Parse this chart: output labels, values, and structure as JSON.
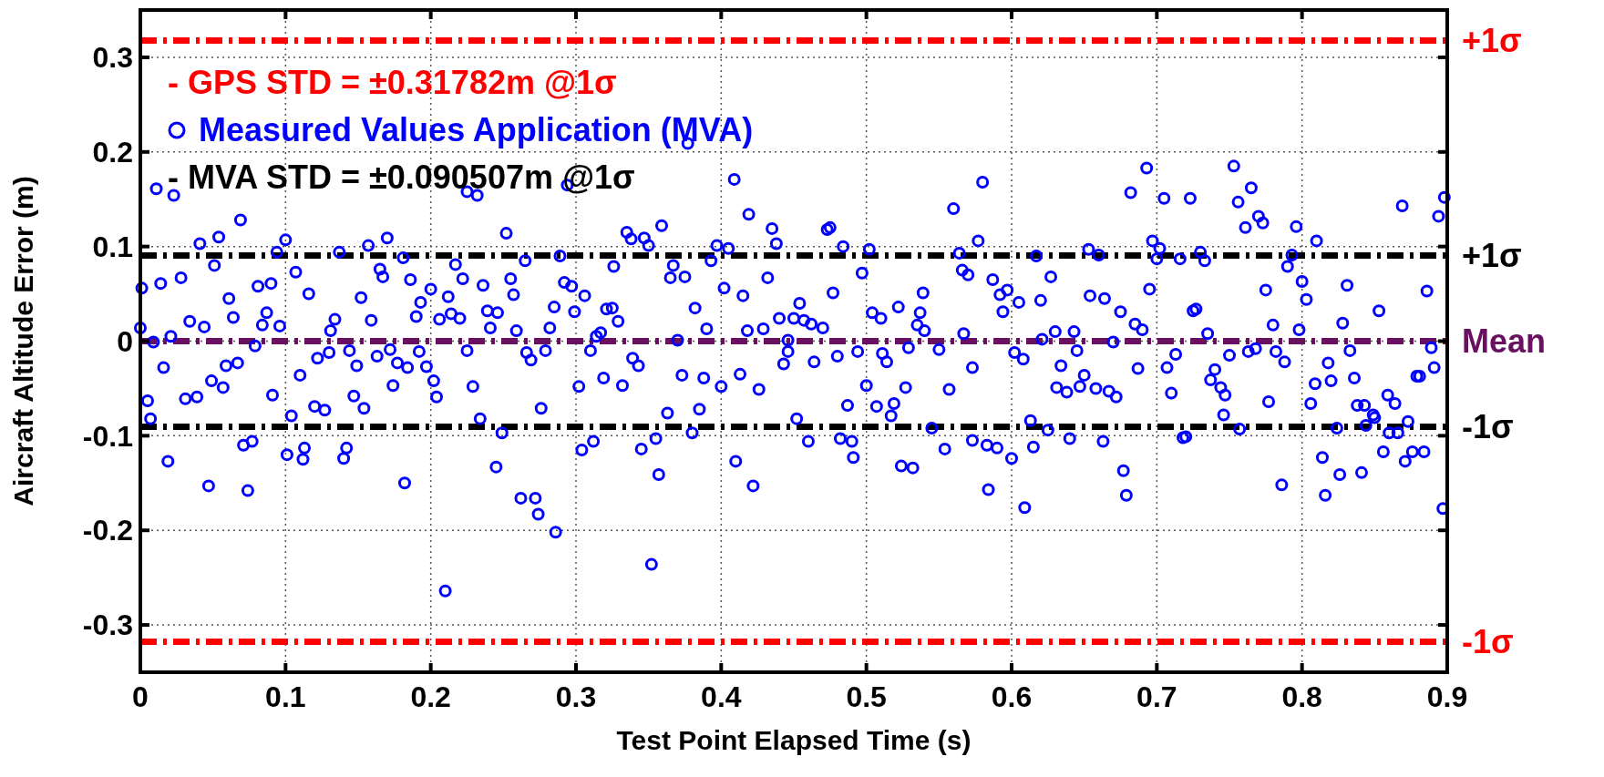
{
  "chart_data": {
    "type": "scatter",
    "xlabel": "Test Point Elapsed Time (s)",
    "ylabel": "Aircraft Altitude Error (m)",
    "xlim": [
      0,
      0.9
    ],
    "xticks": [
      0,
      0.1,
      0.2,
      0.3,
      0.4,
      0.5,
      0.6,
      0.7,
      0.8,
      0.9
    ],
    "ylim": [
      -0.35,
      0.35
    ],
    "yticks": [
      -0.3,
      -0.2,
      -0.1,
      0,
      0.1,
      0.2,
      0.3
    ],
    "grid": true,
    "legend": "top left",
    "marker": "circle",
    "annotations": [
      "- GPS STD = ±0.31782m @1σ",
      "- MVA STD = ±0.090507m @1σ"
    ],
    "ref_lines": [
      {
        "axis": "y",
        "value": 0.31782,
        "label": "+1σ",
        "color": "#ff0000",
        "line_style": "dashed"
      },
      {
        "axis": "y",
        "value": -0.31782,
        "label": "-1σ",
        "color": "#ff0000",
        "line_style": "dashed"
      },
      {
        "axis": "y",
        "value": 0.090507,
        "label": "+1σ",
        "color": "#000000",
        "line_style": "dashed"
      },
      {
        "axis": "y",
        "value": -0.090507,
        "label": "-1σ",
        "color": "#000000",
        "line_style": "dashed"
      },
      {
        "axis": "y",
        "value": 0,
        "label": "Mean",
        "color": "#6a1060",
        "line_style": "dashed"
      }
    ],
    "series": [
      {
        "name": "Measured Values Application (MVA)",
        "color": "#0000ff",
        "x": [
          0.011,
          0.023,
          0.069,
          0.041,
          0.054,
          0.1,
          0.094,
          0.051,
          0.014,
          0.028,
          0.001,
          0.061,
          0.081,
          0.09,
          0.107,
          0.116,
          0.064,
          0.034,
          0.044,
          0.087,
          0.084,
          0.096,
          0.0,
          0.134,
          0.131,
          0.009,
          0.021,
          0.016,
          0.059,
          0.067,
          0.079,
          0.049,
          0.057,
          0.091,
          0.11,
          0.005,
          0.007,
          0.031,
          0.039,
          0.104,
          0.12,
          0.127,
          0.122,
          0.13,
          0.144,
          0.149,
          0.147,
          0.154,
          0.137,
          0.152,
          0.157,
          0.17,
          0.165,
          0.167,
          0.181,
          0.159,
          0.163,
          0.172,
          0.177,
          0.184,
          0.174,
          0.192,
          0.197,
          0.202,
          0.204,
          0.186,
          0.193,
          0.2,
          0.19,
          0.206,
          0.212,
          0.214,
          0.22,
          0.217,
          0.222,
          0.225,
          0.071,
          0.077,
          0.019,
          0.047,
          0.074,
          0.101,
          0.113,
          0.112,
          0.142,
          0.14,
          0.182,
          0.21,
          0.229,
          0.232,
          0.294,
          0.252,
          0.236,
          0.265,
          0.255,
          0.257,
          0.289,
          0.292,
          0.297,
          0.306,
          0.239,
          0.246,
          0.241,
          0.259,
          0.285,
          0.282,
          0.299,
          0.225,
          0.266,
          0.269,
          0.279,
          0.302,
          0.31,
          0.314,
          0.317,
          0.276,
          0.234,
          0.249,
          0.245,
          0.262,
          0.272,
          0.274,
          0.286,
          0.304,
          0.312,
          0.326,
          0.321,
          0.325,
          0.329,
          0.319,
          0.332,
          0.335,
          0.338,
          0.347,
          0.35,
          0.359,
          0.339,
          0.343,
          0.345,
          0.355,
          0.357,
          0.352,
          0.363,
          0.367,
          0.365,
          0.375,
          0.37,
          0.373,
          0.377,
          0.382,
          0.39,
          0.388,
          0.385,
          0.38,
          0.393,
          0.397,
          0.405,
          0.402,
          0.409,
          0.4,
          0.41,
          0.422,
          0.415,
          0.413,
          0.426,
          0.419,
          0.435,
          0.438,
          0.432,
          0.418,
          0.429,
          0.44,
          0.446,
          0.443,
          0.473,
          0.475,
          0.484,
          0.502,
          0.497,
          0.477,
          0.454,
          0.45,
          0.457,
          0.462,
          0.47,
          0.446,
          0.464,
          0.48,
          0.494,
          0.511,
          0.514,
          0.504,
          0.51,
          0.522,
          0.529,
          0.539,
          0.537,
          0.535,
          0.54,
          0.55,
          0.567,
          0.5,
          0.527,
          0.487,
          0.507,
          0.519,
          0.517,
          0.557,
          0.573,
          0.452,
          0.46,
          0.482,
          0.49,
          0.491,
          0.524,
          0.532,
          0.545,
          0.554,
          0.573,
          0.583,
          0.59,
          0.584,
          0.6,
          0.609,
          0.615,
          0.613,
          0.625,
          0.64,
          0.663,
          0.677,
          0.679,
          0.56,
          0.58,
          0.577,
          0.564,
          0.566,
          0.57,
          0.587,
          0.592,
          0.597,
          0.594,
          0.605,
          0.617,
          0.627,
          0.62,
          0.602,
          0.608,
          0.621,
          0.63,
          0.643,
          0.645,
          0.634,
          0.631,
          0.638,
          0.65,
          0.647,
          0.658,
          0.667,
          0.672,
          0.67,
          0.654,
          0.664,
          0.675,
          0.653,
          0.66,
          0.693,
          0.682,
          0.705,
          0.723,
          0.753,
          0.765,
          0.756,
          0.77,
          0.773,
          0.761,
          0.796,
          0.81,
          0.869,
          0.894,
          0.898,
          0.697,
          0.702,
          0.7,
          0.716,
          0.73,
          0.733,
          0.793,
          0.79,
          0.8,
          0.803,
          0.775,
          0.695,
          0.685,
          0.69,
          0.725,
          0.727,
          0.735,
          0.78,
          0.798,
          0.831,
          0.828,
          0.853,
          0.886,
          0.713,
          0.707,
          0.687,
          0.71,
          0.75,
          0.763,
          0.768,
          0.782,
          0.788,
          0.74,
          0.737,
          0.744,
          0.747,
          0.746,
          0.757,
          0.718,
          0.72,
          0.777,
          0.806,
          0.809,
          0.818,
          0.82,
          0.833,
          0.836,
          0.838,
          0.843,
          0.844,
          0.849,
          0.85,
          0.859,
          0.864,
          0.873,
          0.86,
          0.866,
          0.824,
          0.879,
          0.881,
          0.891,
          0.889,
          0.814,
          0.816,
          0.826,
          0.841,
          0.786,
          0.856,
          0.871,
          0.876,
          0.884,
          0.897
        ],
        "values": [
          0.161,
          0.154,
          0.128,
          0.103,
          0.11,
          0.107,
          0.094,
          0.08,
          0.061,
          0.067,
          0.056,
          0.045,
          0.058,
          0.061,
          0.073,
          0.05,
          0.025,
          0.021,
          0.015,
          0.03,
          0.017,
          0.016,
          0.014,
          0.023,
          0.011,
          -0.001,
          0.005,
          -0.028,
          -0.026,
          -0.023,
          -0.005,
          -0.042,
          -0.049,
          -0.057,
          -0.036,
          -0.063,
          -0.082,
          -0.061,
          -0.059,
          -0.079,
          -0.069,
          -0.073,
          -0.018,
          -0.012,
          -0.01,
          -0.026,
          -0.058,
          -0.071,
          0.094,
          0.046,
          0.101,
          0.109,
          0.076,
          0.068,
          0.088,
          0.022,
          -0.016,
          -0.009,
          -0.023,
          -0.028,
          -0.047,
          -0.011,
          -0.027,
          -0.042,
          -0.059,
          0.065,
          0.041,
          0.055,
          0.026,
          0.023,
          0.047,
          0.029,
          0.024,
          0.081,
          0.066,
          0.158,
          -0.11,
          -0.106,
          -0.127,
          -0.153,
          -0.158,
          -0.12,
          -0.113,
          -0.125,
          -0.113,
          -0.124,
          -0.15,
          -0.264,
          -0.048,
          0.154,
          0.165,
          0.114,
          0.059,
          0.085,
          0.066,
          0.049,
          0.09,
          0.062,
          0.058,
          0.048,
          0.032,
          0.03,
          0.014,
          0.011,
          0.036,
          0.014,
          0.031,
          -0.01,
          -0.012,
          -0.02,
          -0.01,
          -0.048,
          -0.01,
          0.005,
          0.009,
          -0.071,
          -0.082,
          -0.097,
          -0.133,
          -0.166,
          -0.166,
          -0.183,
          -0.202,
          -0.115,
          -0.106,
          0.079,
          0.034,
          0.035,
          0.021,
          -0.039,
          -0.047,
          0.115,
          0.108,
          0.109,
          0.101,
          0.122,
          -0.018,
          -0.026,
          -0.114,
          -0.103,
          -0.141,
          -0.236,
          -0.076,
          0.08,
          0.067,
          0.068,
          0.001,
          -0.036,
          0.209,
          0.035,
          0.013,
          -0.039,
          -0.072,
          -0.097,
          0.085,
          0.101,
          0.098,
          0.056,
          0.171,
          -0.048,
          -0.127,
          -0.153,
          0.048,
          -0.035,
          -0.051,
          0.134,
          0.119,
          0.103,
          0.067,
          0.011,
          0.013,
          0.024,
          -0.011,
          -0.024,
          0.118,
          0.12,
          0.1,
          0.097,
          0.072,
          0.051,
          0.04,
          0.024,
          0.022,
          0.018,
          0.014,
          0.001,
          -0.022,
          -0.016,
          -0.011,
          -0.013,
          -0.022,
          0.03,
          0.024,
          0.036,
          -0.007,
          0.051,
          0.03,
          0.017,
          0.011,
          -0.009,
          0.008,
          -0.047,
          -0.049,
          -0.068,
          -0.069,
          -0.066,
          -0.079,
          -0.051,
          -0.028,
          -0.082,
          -0.106,
          -0.103,
          -0.106,
          -0.123,
          -0.132,
          -0.134,
          -0.092,
          -0.114,
          -0.105,
          -0.11,
          -0.113,
          -0.157,
          -0.124,
          -0.176,
          -0.112,
          -0.084,
          -0.094,
          -0.103,
          -0.106,
          -0.137,
          -0.163,
          0.14,
          0.168,
          0.106,
          0.093,
          0.075,
          0.07,
          0.065,
          0.049,
          0.054,
          0.031,
          0.041,
          0.09,
          0.068,
          0.043,
          -0.012,
          -0.019,
          0.002,
          0.01,
          0.01,
          -0.01,
          -0.026,
          -0.049,
          -0.054,
          -0.036,
          -0.048,
          -0.05,
          -0.053,
          -0.059,
          -0.001,
          0.048,
          0.045,
          0.031,
          0.097,
          0.091,
          0.183,
          0.157,
          0.151,
          0.151,
          0.185,
          0.162,
          0.147,
          0.132,
          0.125,
          0.12,
          0.121,
          0.106,
          0.143,
          0.132,
          0.152,
          0.106,
          0.098,
          0.087,
          0.087,
          0.094,
          0.085,
          0.091,
          0.079,
          0.063,
          0.044,
          0.054,
          0.055,
          0.018,
          0.012,
          0.032,
          0.034,
          0.008,
          0.017,
          0.012,
          0.059,
          0.019,
          0.032,
          0.053,
          -0.014,
          -0.028,
          -0.029,
          -0.055,
          -0.015,
          -0.011,
          -0.008,
          -0.011,
          -0.022,
          -0.03,
          -0.041,
          -0.049,
          -0.057,
          -0.078,
          -0.093,
          -0.102,
          -0.101,
          -0.064,
          -0.066,
          -0.045,
          -0.023,
          -0.042,
          -0.01,
          -0.039,
          -0.068,
          -0.068,
          -0.089,
          -0.078,
          -0.081,
          -0.057,
          -0.066,
          -0.085,
          -0.097,
          -0.097,
          -0.092,
          -0.037,
          -0.037,
          -0.028,
          -0.007,
          -0.123,
          -0.163,
          -0.141,
          -0.139,
          -0.152,
          -0.117,
          -0.127,
          -0.117,
          -0.117,
          -0.177
        ]
      }
    ]
  }
}
